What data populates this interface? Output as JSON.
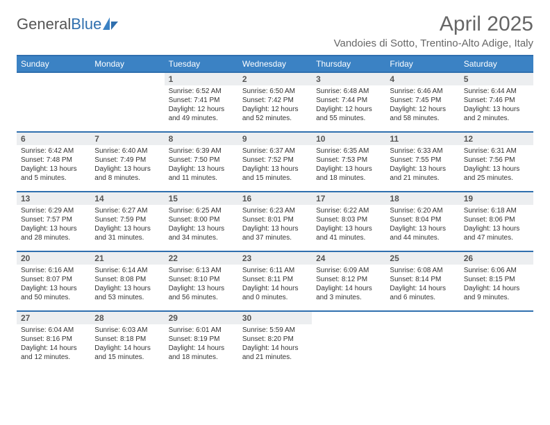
{
  "brand": {
    "part1": "General",
    "part2": "Blue"
  },
  "title": "April 2025",
  "subtitle": "Vandoies di Sotto, Trentino-Alto Adige, Italy",
  "colors": {
    "header_bg": "#3b82c4",
    "header_border": "#2f6fae",
    "daynum_bg": "#eceef0",
    "text": "#333333",
    "title_text": "#666666"
  },
  "typography": {
    "title_fontsize": 30,
    "subtitle_fontsize": 15,
    "th_fontsize": 12,
    "daynum_fontsize": 12,
    "body_fontsize": 10
  },
  "layout": {
    "columns": 7,
    "rows": 5,
    "col_width_pct": 14.2857
  },
  "dayHeaders": [
    "Sunday",
    "Monday",
    "Tuesday",
    "Wednesday",
    "Thursday",
    "Friday",
    "Saturday"
  ],
  "weeks": [
    [
      {
        "n": "",
        "sr": "",
        "ss": "",
        "dl": ""
      },
      {
        "n": "",
        "sr": "",
        "ss": "",
        "dl": ""
      },
      {
        "n": "1",
        "sr": "Sunrise: 6:52 AM",
        "ss": "Sunset: 7:41 PM",
        "dl": "Daylight: 12 hours and 49 minutes."
      },
      {
        "n": "2",
        "sr": "Sunrise: 6:50 AM",
        "ss": "Sunset: 7:42 PM",
        "dl": "Daylight: 12 hours and 52 minutes."
      },
      {
        "n": "3",
        "sr": "Sunrise: 6:48 AM",
        "ss": "Sunset: 7:44 PM",
        "dl": "Daylight: 12 hours and 55 minutes."
      },
      {
        "n": "4",
        "sr": "Sunrise: 6:46 AM",
        "ss": "Sunset: 7:45 PM",
        "dl": "Daylight: 12 hours and 58 minutes."
      },
      {
        "n": "5",
        "sr": "Sunrise: 6:44 AM",
        "ss": "Sunset: 7:46 PM",
        "dl": "Daylight: 13 hours and 2 minutes."
      }
    ],
    [
      {
        "n": "6",
        "sr": "Sunrise: 6:42 AM",
        "ss": "Sunset: 7:48 PM",
        "dl": "Daylight: 13 hours and 5 minutes."
      },
      {
        "n": "7",
        "sr": "Sunrise: 6:40 AM",
        "ss": "Sunset: 7:49 PM",
        "dl": "Daylight: 13 hours and 8 minutes."
      },
      {
        "n": "8",
        "sr": "Sunrise: 6:39 AM",
        "ss": "Sunset: 7:50 PM",
        "dl": "Daylight: 13 hours and 11 minutes."
      },
      {
        "n": "9",
        "sr": "Sunrise: 6:37 AM",
        "ss": "Sunset: 7:52 PM",
        "dl": "Daylight: 13 hours and 15 minutes."
      },
      {
        "n": "10",
        "sr": "Sunrise: 6:35 AM",
        "ss": "Sunset: 7:53 PM",
        "dl": "Daylight: 13 hours and 18 minutes."
      },
      {
        "n": "11",
        "sr": "Sunrise: 6:33 AM",
        "ss": "Sunset: 7:55 PM",
        "dl": "Daylight: 13 hours and 21 minutes."
      },
      {
        "n": "12",
        "sr": "Sunrise: 6:31 AM",
        "ss": "Sunset: 7:56 PM",
        "dl": "Daylight: 13 hours and 25 minutes."
      }
    ],
    [
      {
        "n": "13",
        "sr": "Sunrise: 6:29 AM",
        "ss": "Sunset: 7:57 PM",
        "dl": "Daylight: 13 hours and 28 minutes."
      },
      {
        "n": "14",
        "sr": "Sunrise: 6:27 AM",
        "ss": "Sunset: 7:59 PM",
        "dl": "Daylight: 13 hours and 31 minutes."
      },
      {
        "n": "15",
        "sr": "Sunrise: 6:25 AM",
        "ss": "Sunset: 8:00 PM",
        "dl": "Daylight: 13 hours and 34 minutes."
      },
      {
        "n": "16",
        "sr": "Sunrise: 6:23 AM",
        "ss": "Sunset: 8:01 PM",
        "dl": "Daylight: 13 hours and 37 minutes."
      },
      {
        "n": "17",
        "sr": "Sunrise: 6:22 AM",
        "ss": "Sunset: 8:03 PM",
        "dl": "Daylight: 13 hours and 41 minutes."
      },
      {
        "n": "18",
        "sr": "Sunrise: 6:20 AM",
        "ss": "Sunset: 8:04 PM",
        "dl": "Daylight: 13 hours and 44 minutes."
      },
      {
        "n": "19",
        "sr": "Sunrise: 6:18 AM",
        "ss": "Sunset: 8:06 PM",
        "dl": "Daylight: 13 hours and 47 minutes."
      }
    ],
    [
      {
        "n": "20",
        "sr": "Sunrise: 6:16 AM",
        "ss": "Sunset: 8:07 PM",
        "dl": "Daylight: 13 hours and 50 minutes."
      },
      {
        "n": "21",
        "sr": "Sunrise: 6:14 AM",
        "ss": "Sunset: 8:08 PM",
        "dl": "Daylight: 13 hours and 53 minutes."
      },
      {
        "n": "22",
        "sr": "Sunrise: 6:13 AM",
        "ss": "Sunset: 8:10 PM",
        "dl": "Daylight: 13 hours and 56 minutes."
      },
      {
        "n": "23",
        "sr": "Sunrise: 6:11 AM",
        "ss": "Sunset: 8:11 PM",
        "dl": "Daylight: 14 hours and 0 minutes."
      },
      {
        "n": "24",
        "sr": "Sunrise: 6:09 AM",
        "ss": "Sunset: 8:12 PM",
        "dl": "Daylight: 14 hours and 3 minutes."
      },
      {
        "n": "25",
        "sr": "Sunrise: 6:08 AM",
        "ss": "Sunset: 8:14 PM",
        "dl": "Daylight: 14 hours and 6 minutes."
      },
      {
        "n": "26",
        "sr": "Sunrise: 6:06 AM",
        "ss": "Sunset: 8:15 PM",
        "dl": "Daylight: 14 hours and 9 minutes."
      }
    ],
    [
      {
        "n": "27",
        "sr": "Sunrise: 6:04 AM",
        "ss": "Sunset: 8:16 PM",
        "dl": "Daylight: 14 hours and 12 minutes."
      },
      {
        "n": "28",
        "sr": "Sunrise: 6:03 AM",
        "ss": "Sunset: 8:18 PM",
        "dl": "Daylight: 14 hours and 15 minutes."
      },
      {
        "n": "29",
        "sr": "Sunrise: 6:01 AM",
        "ss": "Sunset: 8:19 PM",
        "dl": "Daylight: 14 hours and 18 minutes."
      },
      {
        "n": "30",
        "sr": "Sunrise: 5:59 AM",
        "ss": "Sunset: 8:20 PM",
        "dl": "Daylight: 14 hours and 21 minutes."
      },
      {
        "n": "",
        "sr": "",
        "ss": "",
        "dl": ""
      },
      {
        "n": "",
        "sr": "",
        "ss": "",
        "dl": ""
      },
      {
        "n": "",
        "sr": "",
        "ss": "",
        "dl": ""
      }
    ]
  ]
}
